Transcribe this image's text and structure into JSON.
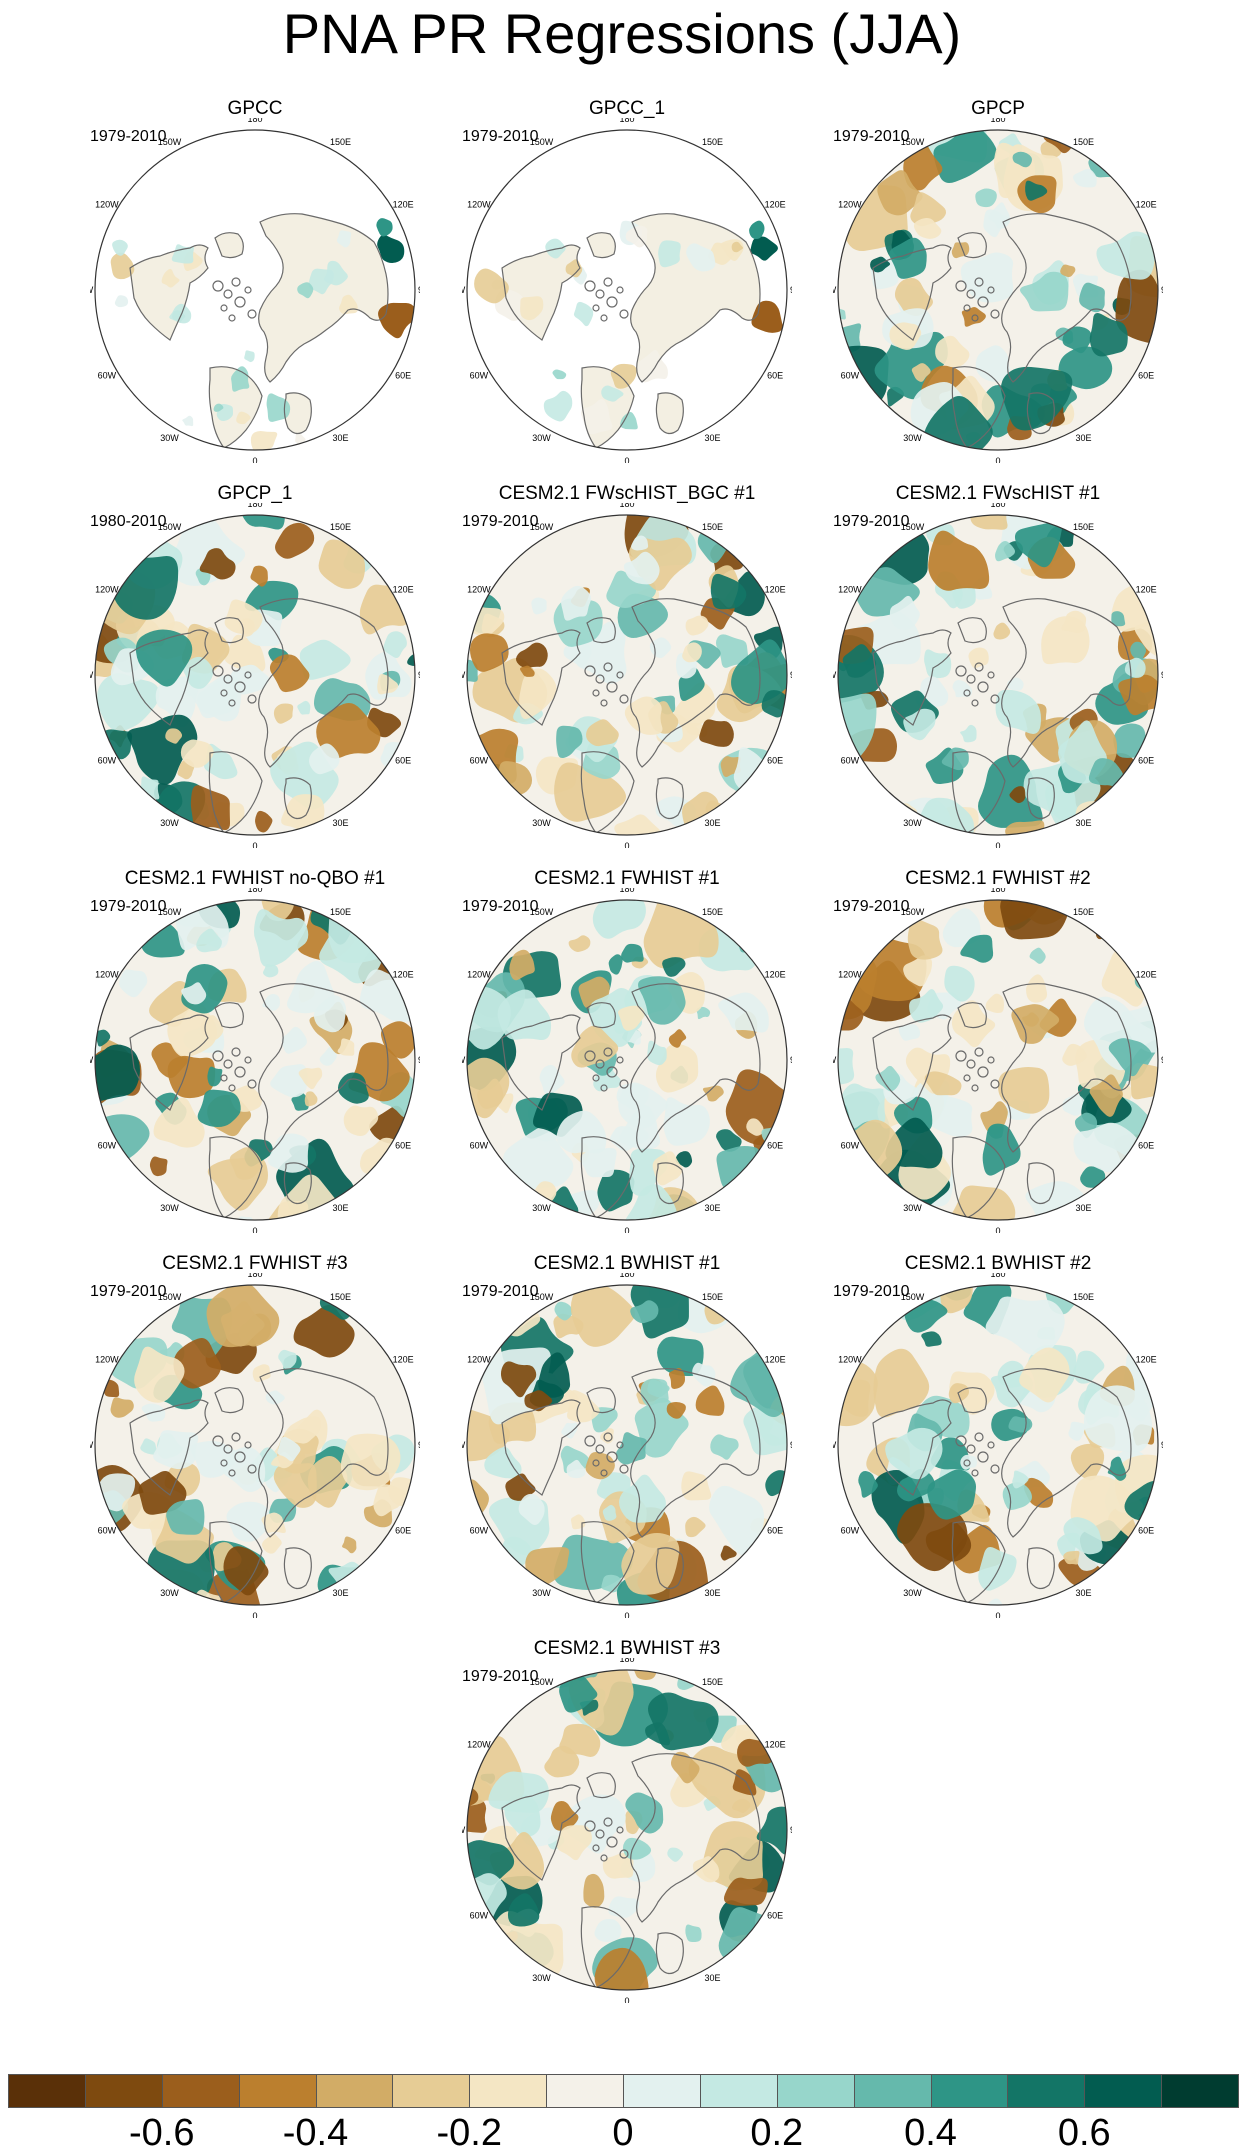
{
  "title": "PNA PR Regressions (JJA)",
  "panels": [
    {
      "title": "GPCC",
      "period": "1979-2010",
      "land_only": true
    },
    {
      "title": "GPCC_1",
      "period": "1979-2010",
      "land_only": true
    },
    {
      "title": "GPCP",
      "period": "1979-2010",
      "land_only": false
    },
    {
      "title": "GPCP_1",
      "period": "1980-2010",
      "land_only": false
    },
    {
      "title": "CESM2.1 FWscHIST_BGC #1",
      "period": "1979-2010",
      "land_only": false
    },
    {
      "title": "CESM2.1 FWscHIST #1",
      "period": "1979-2010",
      "land_only": false
    },
    {
      "title": "CESM2.1 FWHIST no-QBO #1",
      "period": "1979-2010",
      "land_only": false
    },
    {
      "title": "CESM2.1 FWHIST #1",
      "period": "1979-2010",
      "land_only": false
    },
    {
      "title": "CESM2.1 FWHIST #2",
      "period": "1979-2010",
      "land_only": false
    },
    {
      "title": "CESM2.1 FWHIST #3",
      "period": "1979-2010",
      "land_only": false
    },
    {
      "title": "CESM2.1 BWHIST #1",
      "period": "1979-2010",
      "land_only": false
    },
    {
      "title": "CESM2.1 BWHIST #2",
      "period": "1979-2010",
      "land_only": false
    },
    {
      "title": "CESM2.1 BWHIST #3",
      "period": "1979-2010",
      "land_only": false
    }
  ],
  "longitude_labels": [
    "180",
    "150E",
    "120E",
    "90E",
    "60E",
    "30E",
    "0",
    "30W",
    "60W",
    "90W",
    "120W",
    "150W"
  ],
  "colorbar": {
    "colors": [
      "#5a3008",
      "#7e4a0f",
      "#9b5e1c",
      "#bb7f2e",
      "#d2ac66",
      "#e6cc95",
      "#f4e6c4",
      "#f4f1e9",
      "#e3f1ef",
      "#c4e9e3",
      "#97d6cb",
      "#65b9ac",
      "#2e9586",
      "#137566",
      "#025c50",
      "#003c30"
    ],
    "tick_labels": [
      "-0.6",
      "-0.4",
      "-0.2",
      "0",
      "0.2",
      "0.4",
      "0.6"
    ]
  }
}
